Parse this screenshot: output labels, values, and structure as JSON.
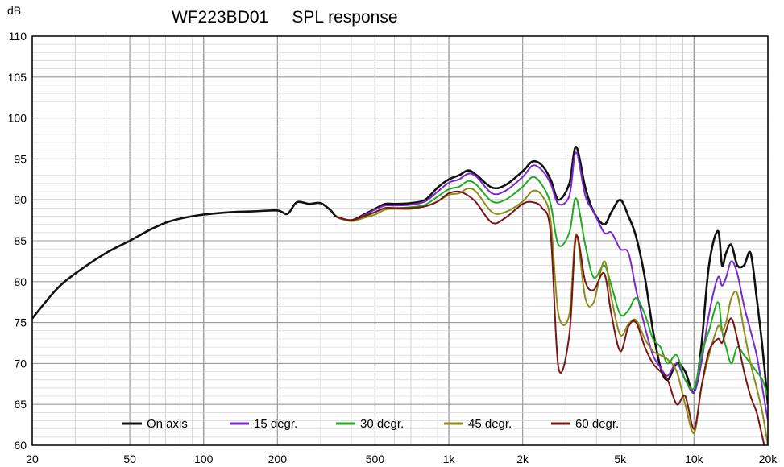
{
  "chart_data": {
    "type": "line",
    "title": "WF223BD01     SPL response",
    "ylabel": "dB",
    "xlabel": "",
    "x_scale": "log",
    "xlim": [
      20,
      20000
    ],
    "ylim": [
      60,
      110
    ],
    "grid": true,
    "legend_position": "bottom",
    "x_ticks": [
      {
        "value": 20,
        "label": "20"
      },
      {
        "value": 50,
        "label": "50"
      },
      {
        "value": 100,
        "label": "100"
      },
      {
        "value": 200,
        "label": "200"
      },
      {
        "value": 500,
        "label": "500"
      },
      {
        "value": 1000,
        "label": "1k"
      },
      {
        "value": 2000,
        "label": "2k"
      },
      {
        "value": 5000,
        "label": "5k"
      },
      {
        "value": 10000,
        "label": "10k"
      },
      {
        "value": 20000,
        "label": "20k"
      }
    ],
    "y_ticks": [
      60,
      65,
      70,
      75,
      80,
      85,
      90,
      95,
      100,
      105,
      110
    ],
    "series": [
      {
        "name": "On axis",
        "color": "#111111",
        "x": [
          20,
          25,
          30,
          40,
          50,
          60,
          70,
          80,
          100,
          130,
          160,
          200,
          220,
          240,
          270,
          300,
          330,
          350,
          400,
          450,
          500,
          550,
          600,
          700,
          800,
          900,
          1000,
          1100,
          1200,
          1300,
          1500,
          1700,
          2000,
          2200,
          2400,
          2600,
          2800,
          3100,
          3300,
          3600,
          3900,
          4300,
          4600,
          5000,
          5400,
          5800,
          6300,
          6800,
          7300,
          7800,
          8500,
          9200,
          10000,
          10700,
          11500,
          12500,
          13000,
          13500,
          14200,
          15000,
          16000,
          17000,
          18000,
          19000,
          20000
        ],
        "y": [
          75.5,
          79,
          81,
          83.5,
          85,
          86.3,
          87.2,
          87.7,
          88.2,
          88.5,
          88.6,
          88.7,
          88.3,
          89.7,
          89.5,
          89.6,
          88.7,
          87.9,
          87.5,
          88.2,
          88.9,
          89.5,
          89.5,
          89.6,
          90,
          91.5,
          92.5,
          93,
          93.6,
          93,
          91.5,
          91.8,
          93.5,
          94.7,
          94.2,
          92.5,
          90,
          92,
          96.5,
          91.5,
          88.5,
          87,
          88.5,
          90,
          88,
          85.5,
          80.5,
          74,
          69.5,
          68,
          70,
          69,
          66.5,
          72,
          82,
          86.2,
          82,
          83.5,
          84.5,
          82,
          82,
          83.5,
          78,
          72,
          65
        ]
      },
      {
        "name": "15 degr.",
        "color": "#7a29cc",
        "x": [
          350,
          400,
          450,
          500,
          550,
          600,
          700,
          800,
          900,
          1000,
          1100,
          1200,
          1300,
          1500,
          1700,
          2000,
          2200,
          2400,
          2600,
          2800,
          3100,
          3300,
          3600,
          3900,
          4300,
          4600,
          5000,
          5400,
          5800,
          6300,
          6800,
          7300,
          7800,
          8500,
          9200,
          10000,
          10700,
          11500,
          12500,
          13000,
          13500,
          14200,
          15000,
          16000,
          17000,
          18000,
          19000,
          20000
        ],
        "y": [
          87.9,
          87.5,
          88.1,
          88.8,
          89.3,
          89.3,
          89.4,
          89.8,
          91,
          92.1,
          92.5,
          93.2,
          92.8,
          90.8,
          91.1,
          92.8,
          94.2,
          93.6,
          92,
          89.5,
          90.5,
          95.8,
          90.5,
          88.5,
          86,
          86,
          84,
          83.5,
          79,
          74.5,
          71,
          69.5,
          68.5,
          70,
          68,
          66.5,
          70,
          76,
          80.5,
          79.5,
          80.5,
          82.5,
          81,
          77,
          74,
          71,
          67,
          63
        ]
      },
      {
        "name": "30 degr.",
        "color": "#22aa22",
        "x": [
          350,
          400,
          450,
          500,
          550,
          600,
          700,
          800,
          900,
          1000,
          1100,
          1200,
          1300,
          1500,
          1700,
          2000,
          2200,
          2400,
          2600,
          2800,
          3100,
          3300,
          3600,
          3900,
          4300,
          4600,
          5000,
          5400,
          5800,
          6300,
          6800,
          7300,
          7800,
          8500,
          9200,
          10000,
          10700,
          11500,
          12500,
          13000,
          13500,
          14200,
          15000,
          16000,
          17000,
          18000,
          19000,
          20000
        ],
        "y": [
          87.9,
          87.4,
          87.9,
          88.5,
          89,
          89,
          89.1,
          89.4,
          90.4,
          91.3,
          91.6,
          92.3,
          91.8,
          89.8,
          90,
          91.6,
          92.8,
          91.8,
          89.5,
          84.5,
          86,
          90.2,
          84.5,
          80.5,
          82,
          79.5,
          76,
          76.5,
          78,
          76,
          73,
          72,
          70,
          71,
          68,
          67,
          71,
          74,
          77.5,
          74,
          72,
          70,
          72,
          71,
          70,
          69,
          68,
          66
        ]
      },
      {
        "name": "45 degr.",
        "color": "#8c8c1a",
        "x": [
          350,
          400,
          450,
          500,
          550,
          600,
          700,
          800,
          900,
          1000,
          1100,
          1200,
          1300,
          1500,
          1700,
          2000,
          2200,
          2400,
          2600,
          2800,
          3100,
          3300,
          3600,
          3900,
          4300,
          4600,
          5000,
          5400,
          5800,
          6300,
          6800,
          7300,
          7800,
          8500,
          9200,
          10000,
          10700,
          11500,
          12500,
          13000,
          13500,
          14200,
          15000,
          16000,
          17000,
          18000,
          19000,
          20000
        ],
        "y": [
          87.9,
          87.4,
          87.8,
          88.2,
          88.8,
          88.9,
          88.9,
          89.2,
          89.8,
          90.6,
          90.8,
          91.4,
          90.9,
          88.5,
          88.5,
          89.8,
          91.1,
          90.5,
          87.5,
          76,
          76,
          85.8,
          78,
          77.5,
          82.5,
          78,
          73.5,
          74.8,
          75.3,
          73,
          71.5,
          71,
          70.5,
          69,
          65,
          61.5,
          67,
          71,
          74.5,
          74,
          75,
          78,
          78.5,
          74,
          70,
          67,
          64,
          60
        ]
      },
      {
        "name": "60 degr.",
        "color": "#7a1515",
        "x": [
          350,
          400,
          450,
          500,
          550,
          600,
          700,
          800,
          900,
          1000,
          1100,
          1200,
          1300,
          1500,
          1700,
          2000,
          2200,
          2400,
          2600,
          2800,
          3100,
          3300,
          3600,
          3900,
          4300,
          4600,
          5000,
          5400,
          5800,
          6300,
          6800,
          7300,
          7800,
          8500,
          9200,
          10000,
          10700,
          11500,
          12500,
          13000,
          13500,
          14200,
          15000,
          16000,
          17000,
          18000,
          19000,
          20000
        ],
        "y": [
          87.9,
          87.5,
          88,
          88.5,
          89,
          89,
          89,
          89.2,
          89.8,
          90.8,
          91,
          90.5,
          89.6,
          87.2,
          87.8,
          89.5,
          89.7,
          89,
          86,
          69.5,
          73.5,
          85.5,
          80,
          79,
          81,
          76,
          71.5,
          74.5,
          75,
          72,
          70,
          69,
          68,
          65,
          66,
          62,
          67,
          71.5,
          73,
          72.5,
          74,
          75.5,
          73,
          69,
          66,
          64,
          61,
          58
        ]
      }
    ]
  }
}
